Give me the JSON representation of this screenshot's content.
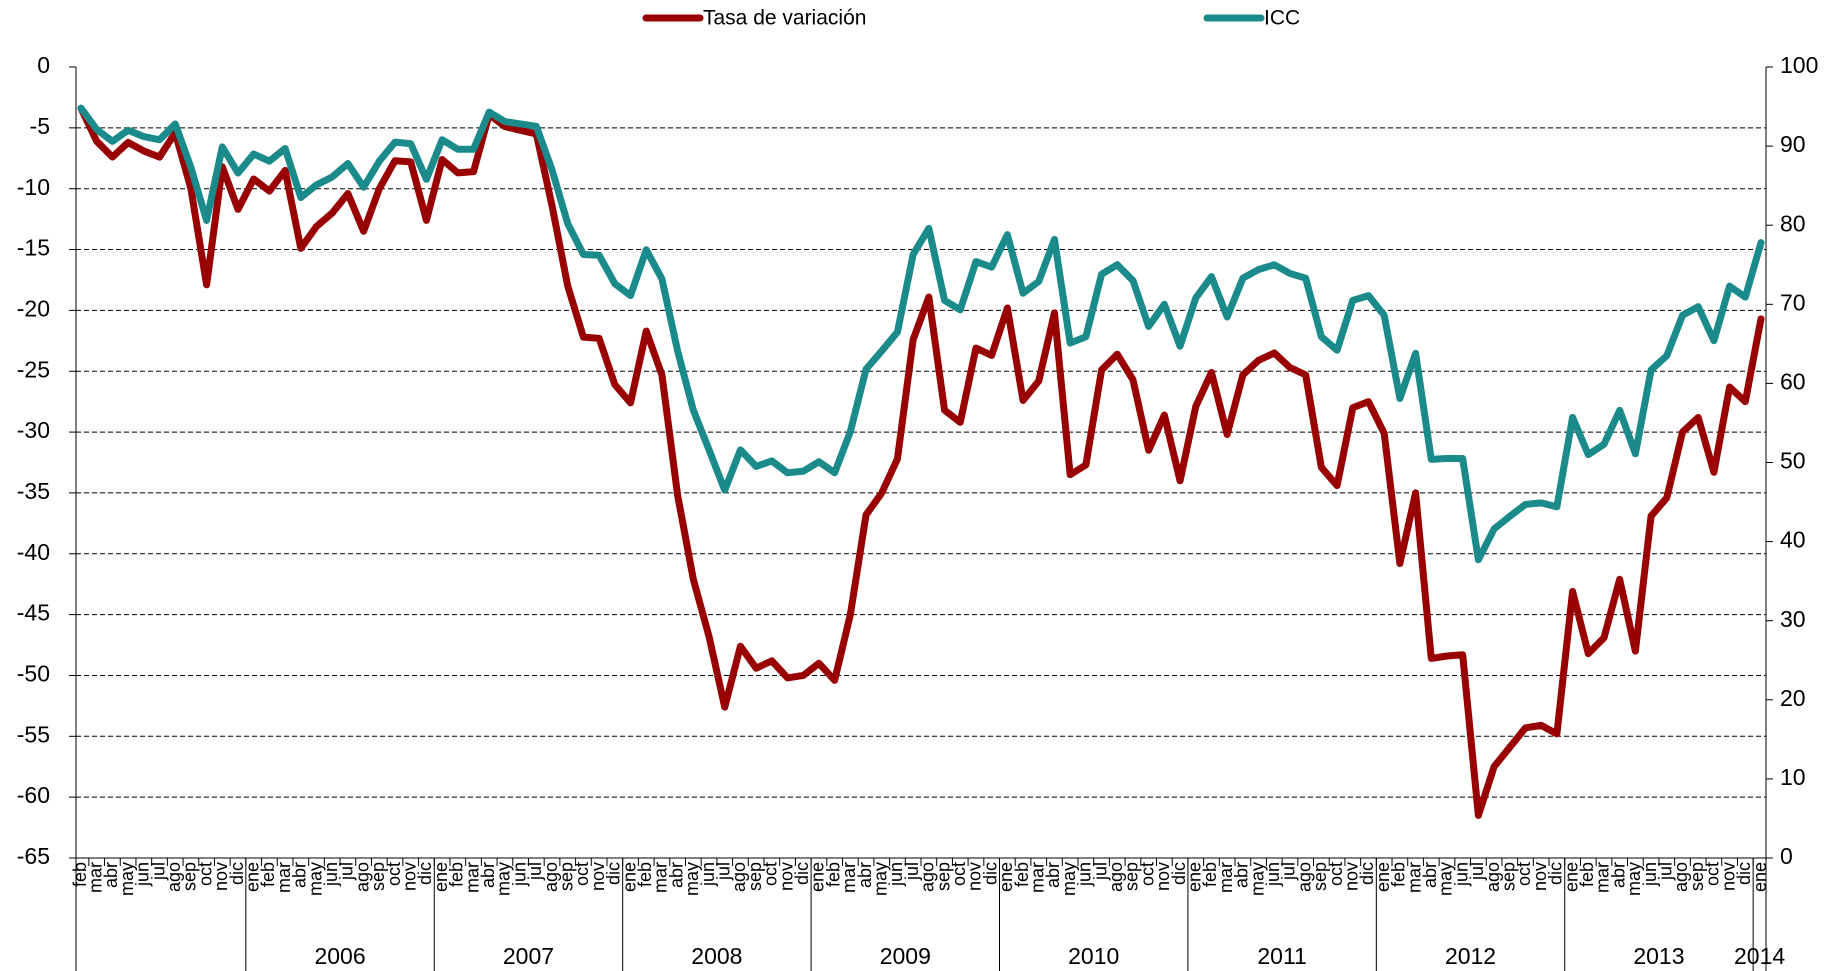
{
  "chart_data": {
    "type": "line",
    "categories": [
      "feb",
      "mar",
      "abr",
      "may",
      "jun",
      "jul",
      "ago",
      "sep",
      "oct",
      "nov",
      "dic",
      "ene",
      "feb",
      "mar",
      "abr",
      "may",
      "jun",
      "jul",
      "ago",
      "sep",
      "oct",
      "nov",
      "dic",
      "ene",
      "feb",
      "mar",
      "abr",
      "may",
      "jun",
      "jul",
      "ago",
      "sep",
      "oct",
      "nov",
      "dic",
      "ene",
      "feb",
      "mar",
      "abr",
      "may",
      "jun",
      "jul",
      "ago",
      "sep",
      "oct",
      "nov",
      "dic",
      "ene",
      "feb",
      "mar",
      "abr",
      "may",
      "jun",
      "jul",
      "ago",
      "sep",
      "oct",
      "nov",
      "dic",
      "ene",
      "feb",
      "mar",
      "abr",
      "may",
      "jun",
      "jul",
      "ago",
      "sep",
      "oct",
      "nov",
      "dic",
      "ene",
      "feb",
      "mar",
      "abr",
      "may",
      "jun",
      "jul",
      "ago",
      "sep",
      "oct",
      "nov",
      "dic",
      "ene",
      "feb",
      "mar",
      "abr",
      "may",
      "jun",
      "jul",
      "ago",
      "sep",
      "oct",
      "nov",
      "dic",
      "ene",
      "feb",
      "mar",
      "abr",
      "may",
      "jun",
      "jul",
      "ago",
      "sep",
      "oct",
      "nov",
      "dic",
      "ene"
    ],
    "year_labels": [
      "2006",
      "2007",
      "2008",
      "2009",
      "2010",
      "2011",
      "2012",
      "2013",
      "2014"
    ],
    "series": [
      {
        "name": "Tasa de variación",
        "color": "#990000",
        "axis": "y",
        "values": [
          -3.4,
          -6.1,
          -7.4,
          -6.2,
          -6.9,
          -7.4,
          -5.4,
          -10,
          -17.9,
          -8.2,
          -11.7,
          -9.2,
          -10.2,
          -8.5,
          -14.9,
          -13.1,
          -12,
          -10.4,
          -13.5,
          -10,
          -7.7,
          -7.8,
          -12.6,
          -7.6,
          -8.7,
          -8.6,
          -3.9,
          -4.9,
          -5.2,
          -5.5,
          -11.4,
          -18,
          -22.2,
          -22.3,
          -26.1,
          -27.6,
          -21.7,
          -25.3,
          -35.2,
          -42.1,
          -46.8,
          -52.6,
          -47.6,
          -49.4,
          -48.8,
          -50.2,
          -50,
          -49,
          -50.4,
          -45,
          -36.8,
          -35,
          -32.2,
          -22.4,
          -18.9,
          -28.2,
          -29.2,
          -23.1,
          -23.7,
          -19.8,
          -27.4,
          -25.8,
          -20.2,
          -33.5,
          -32.7,
          -24.9,
          -23.6,
          -25.7,
          -31.5,
          -28.6,
          -34,
          -27.9,
          -25.1,
          -30.2,
          -25.3,
          -24.1,
          -23.5,
          -24.7,
          -25.3,
          -32.9,
          -34.4,
          -28,
          -27.5,
          -30.1,
          -40.8,
          -35,
          -48.6,
          -48.4,
          -48.3,
          -61.5,
          -57.5,
          -55.9,
          -54.3,
          -54.1,
          -54.8,
          -43.1,
          -48.2,
          -46.9,
          -42.1,
          -48,
          -36.9,
          -35.4,
          -30,
          -28.8,
          -33.3,
          -26.3,
          -27.5,
          -20.7
        ]
      },
      {
        "name": "ICC",
        "color": "#1a8a8a",
        "axis": "y2",
        "values": [
          94.8,
          92.1,
          90.6,
          92,
          91.2,
          90.8,
          92.8,
          87.3,
          80.6,
          89.9,
          86.6,
          89,
          88.1,
          89.7,
          83.5,
          85.1,
          86.1,
          87.8,
          84.8,
          88.1,
          90.5,
          90.3,
          85.8,
          90.8,
          89.6,
          89.6,
          94.3,
          93.1,
          92.8,
          92.5,
          87,
          80.2,
          76.3,
          76.2,
          72.6,
          71.1,
          76.9,
          73.2,
          64.1,
          56.6,
          51.6,
          46.5,
          51.6,
          49.5,
          50.2,
          48.7,
          48.9,
          50.1,
          48.7,
          53.9,
          61.8,
          64.1,
          66.5,
          76.3,
          79.6,
          70.5,
          69.3,
          75.4,
          74.7,
          78.8,
          71.4,
          72.9,
          78.2,
          65.1,
          65.9,
          73.8,
          75,
          73,
          67.2,
          70,
          64.7,
          70.8,
          73.5,
          68.4,
          73.3,
          74.4,
          75,
          73.9,
          73.3,
          65.9,
          64.2,
          70.5,
          71.1,
          68.6,
          58.1,
          63.8,
          50.4,
          50.5,
          50.5,
          37.7,
          41.6,
          43.2,
          44.7,
          44.9,
          44.4,
          55.7,
          51,
          52.3,
          56.6,
          51.1,
          61.7,
          63.5,
          68.6,
          69.7,
          65.4,
          72.3,
          70.9,
          77.8
        ]
      }
    ],
    "ylim": [
      -65,
      0
    ],
    "yticks": [
      -65,
      -60,
      -55,
      -50,
      -45,
      -40,
      -35,
      -30,
      -25,
      -20,
      -15,
      -10,
      -5,
      0
    ],
    "y2lim": [
      0,
      100
    ],
    "y2ticks": [
      0,
      10,
      20,
      30,
      40,
      50,
      60,
      70,
      80,
      90,
      100
    ],
    "grid": true,
    "legend": "top"
  }
}
